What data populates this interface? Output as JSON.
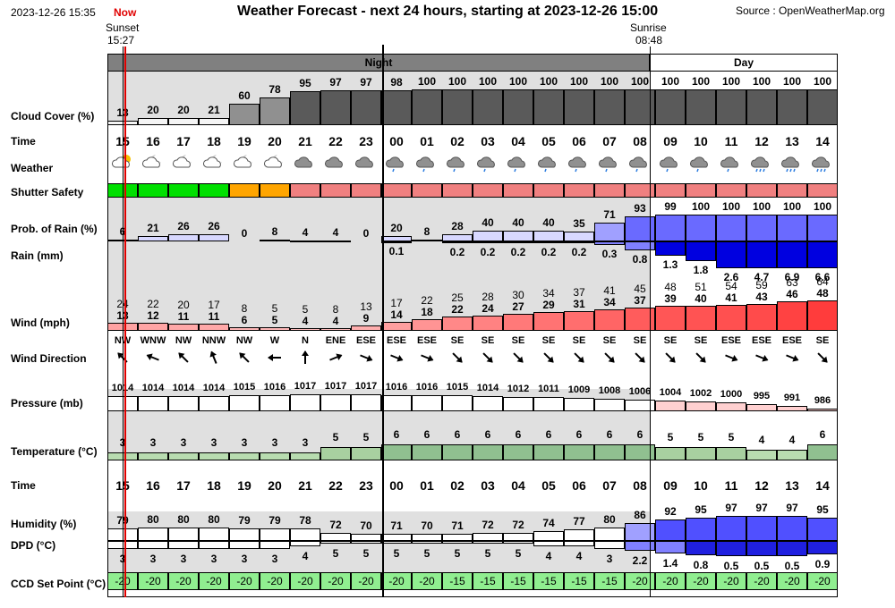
{
  "header": {
    "timestamp": "2023-12-26 15:35",
    "now_label": "Now",
    "title": "Weather Forecast - next 24 hours, starting at 2023-12-26 15:00",
    "source": "Source : OpenWeatherMap.org",
    "sunset_label": "Sunset",
    "sunset_time": "15:27",
    "sunrise_label": "Sunrise",
    "sunrise_time": "08:48"
  },
  "periods": {
    "night": "Night",
    "day": "Day"
  },
  "labels": {
    "cloud": "Cloud Cover (%)",
    "time": "Time",
    "weather": "Weather",
    "shutter": "Shutter Safety",
    "prob": "Prob. of Rain (%)",
    "rain": "Rain (mm)",
    "wind": "Wind (mph)",
    "winddir": "Wind Direction",
    "pressure": "Pressure (mb)",
    "temperature": "Temperature (°C)",
    "time2": "Time",
    "humidity": "Humidity (%)",
    "dpd": "DPD (°C)",
    "ccd": "CCD Set Point (°C)"
  },
  "hours": [
    "15",
    "16",
    "17",
    "18",
    "19",
    "20",
    "21",
    "22",
    "23",
    "00",
    "01",
    "02",
    "03",
    "04",
    "05",
    "06",
    "07",
    "08",
    "09",
    "10",
    "11",
    "12",
    "13",
    "14"
  ],
  "cloud": [
    "13",
    "20",
    "20",
    "21",
    "60",
    "78",
    "95",
    "97",
    "97",
    "98",
    "100",
    "100",
    "100",
    "100",
    "100",
    "100",
    "100",
    "100",
    "100",
    "100",
    "100",
    "100",
    "100",
    "100"
  ],
  "weather_icons": [
    "partly-sunny-icon",
    "night-cloud-icon",
    "night-cloud-icon",
    "night-cloud-icon",
    "night-cloud-icon",
    "night-cloud-icon",
    "overcast-icon",
    "overcast-icon",
    "overcast-icon",
    "light-rain-icon",
    "light-rain-icon",
    "light-rain-icon",
    "light-rain-icon",
    "light-rain-icon",
    "light-rain-icon",
    "light-rain-icon",
    "light-rain-icon",
    "light-rain-icon",
    "light-rain-icon",
    "light-rain-icon",
    "light-rain-icon",
    "rain-icon",
    "rain-icon",
    "rain-icon"
  ],
  "shutter": [
    "safe",
    "safe",
    "safe",
    "safe",
    "caution",
    "caution",
    "unsafe",
    "unsafe",
    "unsafe",
    "unsafe",
    "unsafe",
    "unsafe",
    "unsafe",
    "unsafe",
    "unsafe",
    "unsafe",
    "unsafe",
    "unsafe",
    "unsafe",
    "unsafe",
    "unsafe",
    "unsafe",
    "unsafe",
    "unsafe"
  ],
  "prob": [
    "6",
    "21",
    "26",
    "26",
    "0",
    "8",
    "4",
    "4",
    "0",
    "20",
    "8",
    "28",
    "40",
    "40",
    "40",
    "35",
    "71",
    "93",
    "99",
    "100",
    "100",
    "100",
    "100",
    "100"
  ],
  "rain": [
    "",
    "",
    "",
    "",
    "",
    "",
    "",
    "",
    "",
    "0.1",
    "",
    "0.2",
    "0.2",
    "0.2",
    "0.2",
    "0.2",
    "0.3",
    "0.8",
    "1.3",
    "1.8",
    "2.6",
    "4.7",
    "6.9",
    "6.6"
  ],
  "gust": [
    "24",
    "22",
    "20",
    "17",
    "8",
    "5",
    "5",
    "8",
    "13",
    "17",
    "22",
    "25",
    "28",
    "30",
    "34",
    "37",
    "41",
    "45",
    "48",
    "51",
    "54",
    "59",
    "63",
    "64"
  ],
  "wind": [
    "13",
    "12",
    "11",
    "11",
    "6",
    "5",
    "4",
    "4",
    "9",
    "14",
    "18",
    "22",
    "24",
    "27",
    "29",
    "31",
    "34",
    "37",
    "39",
    "40",
    "41",
    "43",
    "46",
    "48"
  ],
  "winddir": [
    "NW",
    "WNW",
    "NW",
    "NNW",
    "NW",
    "W",
    "N",
    "ENE",
    "ESE",
    "ESE",
    "ESE",
    "SE",
    "SE",
    "SE",
    "SE",
    "SE",
    "SE",
    "SE",
    "SE",
    "SE",
    "ESE",
    "ESE",
    "ESE",
    "SE"
  ],
  "wind_deg": [
    315,
    292,
    315,
    338,
    315,
    270,
    0,
    68,
    112,
    112,
    112,
    135,
    135,
    135,
    135,
    135,
    135,
    135,
    135,
    135,
    112,
    112,
    112,
    135
  ],
  "pressure": [
    "1014",
    "1014",
    "1014",
    "1014",
    "1015",
    "1016",
    "1017",
    "1017",
    "1017",
    "1016",
    "1016",
    "1015",
    "1014",
    "1012",
    "1011",
    "1009",
    "1008",
    "1006",
    "1004",
    "1002",
    "1000",
    "995",
    "991",
    "986"
  ],
  "temperature": [
    "3",
    "3",
    "3",
    "3",
    "3",
    "3",
    "3",
    "5",
    "5",
    "6",
    "6",
    "6",
    "6",
    "6",
    "6",
    "6",
    "6",
    "6",
    "5",
    "5",
    "5",
    "4",
    "4",
    "6"
  ],
  "humidity": [
    "79",
    "80",
    "80",
    "80",
    "79",
    "79",
    "78",
    "72",
    "70",
    "71",
    "70",
    "71",
    "72",
    "72",
    "74",
    "77",
    "80",
    "86",
    "92",
    "95",
    "97",
    "97",
    "97",
    "95"
  ],
  "dpd": [
    "3",
    "3",
    "3",
    "3",
    "3",
    "3",
    "4",
    "5",
    "5",
    "5",
    "5",
    "5",
    "5",
    "5",
    "4",
    "4",
    "3",
    "2.2",
    "1.4",
    "0.8",
    "0.5",
    "0.5",
    "0.5",
    "0.9"
  ],
  "ccd": [
    "-20",
    "-20",
    "-20",
    "-20",
    "-20",
    "-20",
    "-20",
    "-20",
    "-20",
    "-20",
    "-20",
    "-15",
    "-15",
    "-15",
    "-15",
    "-15",
    "-15",
    "-20",
    "-20",
    "-20",
    "-20",
    "-20",
    "-20",
    "-20"
  ],
  "colors": {
    "night_band": "#808080",
    "night_bg": "#e0e0e0",
    "day_band": "#ffffff",
    "cloud_fill": "#5a5a5a",
    "shutter_safe": "#00e000",
    "shutter_caution": "#ffa500",
    "shutter_unsafe": "#f08080",
    "now_line": "#e00000",
    "ccd_bg": "#90ee90"
  }
}
